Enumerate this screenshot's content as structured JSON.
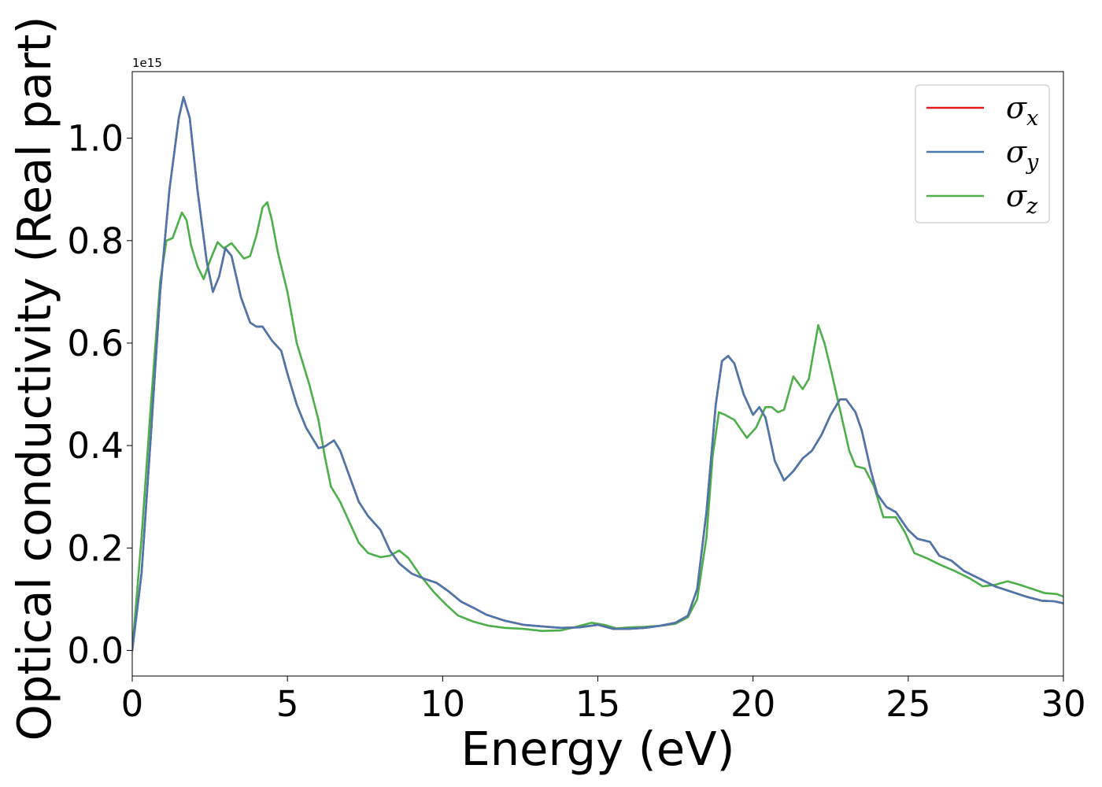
{
  "chart_data": {
    "type": "line",
    "xlabel": "Energy (eV)",
    "ylabel": "Optical conductivity (Real part)",
    "y_offset_text": "1e15",
    "xlim": [
      0,
      30
    ],
    "ylim": [
      -0.05,
      1.13
    ],
    "x_ticks": [
      0,
      5,
      10,
      15,
      20,
      25,
      30
    ],
    "x_tick_labels": [
      "0",
      "5",
      "10",
      "15",
      "20",
      "25",
      "30"
    ],
    "y_ticks": [
      0.0,
      0.2,
      0.4,
      0.6,
      0.8,
      1.0
    ],
    "y_tick_labels": [
      "0.0",
      "0.2",
      "0.4",
      "0.6",
      "0.8",
      "1.0"
    ],
    "grid": false,
    "legend_position": "top-right",
    "colors": {
      "sigma_x": "#e41a1c",
      "sigma_y": "#4a78ad",
      "sigma_z": "#4caf4a"
    },
    "series": [
      {
        "name": "σx",
        "legend_base": "σ",
        "legend_sub": "x",
        "color": "#e41a1c",
        "points": [
          [
            0,
            0
          ],
          [
            0.3,
            0.15
          ],
          [
            0.6,
            0.42
          ],
          [
            0.9,
            0.7
          ],
          [
            1.2,
            0.9
          ],
          [
            1.5,
            1.04
          ],
          [
            1.65,
            1.08
          ],
          [
            1.85,
            1.04
          ],
          [
            2.1,
            0.9
          ],
          [
            2.4,
            0.76
          ],
          [
            2.6,
            0.7
          ],
          [
            2.8,
            0.73
          ],
          [
            3.0,
            0.785
          ],
          [
            3.2,
            0.77
          ],
          [
            3.5,
            0.69
          ],
          [
            3.8,
            0.64
          ],
          [
            4.0,
            0.632
          ],
          [
            4.2,
            0.632
          ],
          [
            4.5,
            0.605
          ],
          [
            4.8,
            0.585
          ],
          [
            5.0,
            0.54
          ],
          [
            5.3,
            0.48
          ],
          [
            5.6,
            0.435
          ],
          [
            6.0,
            0.395
          ],
          [
            6.2,
            0.398
          ],
          [
            6.5,
            0.41
          ],
          [
            6.7,
            0.39
          ],
          [
            7.0,
            0.34
          ],
          [
            7.3,
            0.29
          ],
          [
            7.6,
            0.262
          ],
          [
            8.0,
            0.235
          ],
          [
            8.3,
            0.195
          ],
          [
            8.6,
            0.17
          ],
          [
            9.0,
            0.15
          ],
          [
            9.4,
            0.14
          ],
          [
            9.8,
            0.132
          ],
          [
            10.2,
            0.115
          ],
          [
            10.6,
            0.095
          ],
          [
            11.0,
            0.083
          ],
          [
            11.4,
            0.07
          ],
          [
            12.0,
            0.058
          ],
          [
            12.6,
            0.05
          ],
          [
            13.2,
            0.047
          ],
          [
            13.8,
            0.044
          ],
          [
            14.4,
            0.045
          ],
          [
            15.0,
            0.05
          ],
          [
            15.5,
            0.042
          ],
          [
            16.0,
            0.042
          ],
          [
            16.5,
            0.044
          ],
          [
            17.0,
            0.048
          ],
          [
            17.5,
            0.054
          ],
          [
            17.9,
            0.068
          ],
          [
            18.2,
            0.12
          ],
          [
            18.5,
            0.27
          ],
          [
            18.8,
            0.48
          ],
          [
            19.0,
            0.565
          ],
          [
            19.2,
            0.575
          ],
          [
            19.4,
            0.56
          ],
          [
            19.7,
            0.5
          ],
          [
            20.0,
            0.46
          ],
          [
            20.2,
            0.475
          ],
          [
            20.4,
            0.455
          ],
          [
            20.7,
            0.37
          ],
          [
            21.0,
            0.332
          ],
          [
            21.3,
            0.35
          ],
          [
            21.6,
            0.375
          ],
          [
            21.9,
            0.39
          ],
          [
            22.2,
            0.42
          ],
          [
            22.5,
            0.46
          ],
          [
            22.8,
            0.49
          ],
          [
            23.0,
            0.49
          ],
          [
            23.3,
            0.465
          ],
          [
            23.5,
            0.43
          ],
          [
            23.8,
            0.35
          ],
          [
            24.0,
            0.305
          ],
          [
            24.3,
            0.28
          ],
          [
            24.6,
            0.27
          ],
          [
            25.0,
            0.235
          ],
          [
            25.3,
            0.218
          ],
          [
            25.7,
            0.212
          ],
          [
            26.0,
            0.185
          ],
          [
            26.4,
            0.175
          ],
          [
            26.8,
            0.155
          ],
          [
            27.3,
            0.14
          ],
          [
            27.8,
            0.125
          ],
          [
            28.3,
            0.115
          ],
          [
            28.8,
            0.105
          ],
          [
            29.3,
            0.097
          ],
          [
            29.7,
            0.096
          ],
          [
            30.0,
            0.092
          ]
        ]
      },
      {
        "name": "σy",
        "legend_base": "σ",
        "legend_sub": "y",
        "color": "#4a78ad",
        "points": [
          [
            0,
            0
          ],
          [
            0.3,
            0.15
          ],
          [
            0.6,
            0.42
          ],
          [
            0.9,
            0.7
          ],
          [
            1.2,
            0.9
          ],
          [
            1.5,
            1.04
          ],
          [
            1.65,
            1.08
          ],
          [
            1.85,
            1.04
          ],
          [
            2.1,
            0.9
          ],
          [
            2.4,
            0.76
          ],
          [
            2.6,
            0.7
          ],
          [
            2.8,
            0.73
          ],
          [
            3.0,
            0.785
          ],
          [
            3.2,
            0.77
          ],
          [
            3.5,
            0.69
          ],
          [
            3.8,
            0.64
          ],
          [
            4.0,
            0.632
          ],
          [
            4.2,
            0.632
          ],
          [
            4.5,
            0.605
          ],
          [
            4.8,
            0.585
          ],
          [
            5.0,
            0.54
          ],
          [
            5.3,
            0.48
          ],
          [
            5.6,
            0.435
          ],
          [
            6.0,
            0.395
          ],
          [
            6.2,
            0.398
          ],
          [
            6.5,
            0.41
          ],
          [
            6.7,
            0.39
          ],
          [
            7.0,
            0.34
          ],
          [
            7.3,
            0.29
          ],
          [
            7.6,
            0.262
          ],
          [
            8.0,
            0.235
          ],
          [
            8.3,
            0.195
          ],
          [
            8.6,
            0.17
          ],
          [
            9.0,
            0.15
          ],
          [
            9.4,
            0.14
          ],
          [
            9.8,
            0.132
          ],
          [
            10.2,
            0.115
          ],
          [
            10.6,
            0.095
          ],
          [
            11.0,
            0.083
          ],
          [
            11.4,
            0.07
          ],
          [
            12.0,
            0.058
          ],
          [
            12.6,
            0.05
          ],
          [
            13.2,
            0.047
          ],
          [
            13.8,
            0.044
          ],
          [
            14.4,
            0.045
          ],
          [
            15.0,
            0.05
          ],
          [
            15.5,
            0.042
          ],
          [
            16.0,
            0.042
          ],
          [
            16.5,
            0.044
          ],
          [
            17.0,
            0.048
          ],
          [
            17.5,
            0.054
          ],
          [
            17.9,
            0.068
          ],
          [
            18.2,
            0.12
          ],
          [
            18.5,
            0.27
          ],
          [
            18.8,
            0.48
          ],
          [
            19.0,
            0.565
          ],
          [
            19.2,
            0.575
          ],
          [
            19.4,
            0.56
          ],
          [
            19.7,
            0.5
          ],
          [
            20.0,
            0.46
          ],
          [
            20.2,
            0.475
          ],
          [
            20.4,
            0.455
          ],
          [
            20.7,
            0.37
          ],
          [
            21.0,
            0.332
          ],
          [
            21.3,
            0.35
          ],
          [
            21.6,
            0.375
          ],
          [
            21.9,
            0.39
          ],
          [
            22.2,
            0.42
          ],
          [
            22.5,
            0.46
          ],
          [
            22.8,
            0.49
          ],
          [
            23.0,
            0.49
          ],
          [
            23.3,
            0.465
          ],
          [
            23.5,
            0.43
          ],
          [
            23.8,
            0.35
          ],
          [
            24.0,
            0.305
          ],
          [
            24.3,
            0.28
          ],
          [
            24.6,
            0.27
          ],
          [
            25.0,
            0.235
          ],
          [
            25.3,
            0.218
          ],
          [
            25.7,
            0.212
          ],
          [
            26.0,
            0.185
          ],
          [
            26.4,
            0.175
          ],
          [
            26.8,
            0.155
          ],
          [
            27.3,
            0.14
          ],
          [
            27.8,
            0.125
          ],
          [
            28.3,
            0.115
          ],
          [
            28.8,
            0.105
          ],
          [
            29.3,
            0.097
          ],
          [
            29.7,
            0.096
          ],
          [
            30.0,
            0.092
          ]
        ]
      },
      {
        "name": "σz",
        "legend_base": "σ",
        "legend_sub": "z",
        "color": "#4caf4a",
        "points": [
          [
            0,
            0
          ],
          [
            0.3,
            0.22
          ],
          [
            0.6,
            0.48
          ],
          [
            0.9,
            0.72
          ],
          [
            1.1,
            0.8
          ],
          [
            1.3,
            0.805
          ],
          [
            1.45,
            0.83
          ],
          [
            1.6,
            0.855
          ],
          [
            1.75,
            0.84
          ],
          [
            1.9,
            0.79
          ],
          [
            2.1,
            0.75
          ],
          [
            2.3,
            0.725
          ],
          [
            2.5,
            0.76
          ],
          [
            2.75,
            0.797
          ],
          [
            2.95,
            0.785
          ],
          [
            3.2,
            0.795
          ],
          [
            3.4,
            0.78
          ],
          [
            3.6,
            0.765
          ],
          [
            3.8,
            0.77
          ],
          [
            4.0,
            0.81
          ],
          [
            4.2,
            0.865
          ],
          [
            4.35,
            0.875
          ],
          [
            4.5,
            0.84
          ],
          [
            4.7,
            0.775
          ],
          [
            5.0,
            0.7
          ],
          [
            5.3,
            0.6
          ],
          [
            5.7,
            0.52
          ],
          [
            6.0,
            0.45
          ],
          [
            6.2,
            0.38
          ],
          [
            6.4,
            0.32
          ],
          [
            6.7,
            0.29
          ],
          [
            7.0,
            0.25
          ],
          [
            7.3,
            0.21
          ],
          [
            7.6,
            0.19
          ],
          [
            8.0,
            0.182
          ],
          [
            8.3,
            0.185
          ],
          [
            8.6,
            0.195
          ],
          [
            8.9,
            0.18
          ],
          [
            9.3,
            0.145
          ],
          [
            9.7,
            0.115
          ],
          [
            10.1,
            0.09
          ],
          [
            10.5,
            0.068
          ],
          [
            11.0,
            0.056
          ],
          [
            11.5,
            0.048
          ],
          [
            12.0,
            0.044
          ],
          [
            12.6,
            0.042
          ],
          [
            13.2,
            0.038
          ],
          [
            13.8,
            0.039
          ],
          [
            14.3,
            0.046
          ],
          [
            14.8,
            0.054
          ],
          [
            15.2,
            0.05
          ],
          [
            15.6,
            0.043
          ],
          [
            16.0,
            0.045
          ],
          [
            16.5,
            0.046
          ],
          [
            17.0,
            0.048
          ],
          [
            17.5,
            0.052
          ],
          [
            17.9,
            0.065
          ],
          [
            18.2,
            0.1
          ],
          [
            18.5,
            0.22
          ],
          [
            18.7,
            0.38
          ],
          [
            18.9,
            0.465
          ],
          [
            19.1,
            0.46
          ],
          [
            19.4,
            0.45
          ],
          [
            19.8,
            0.415
          ],
          [
            20.1,
            0.435
          ],
          [
            20.4,
            0.475
          ],
          [
            20.6,
            0.475
          ],
          [
            20.8,
            0.465
          ],
          [
            21.0,
            0.47
          ],
          [
            21.3,
            0.535
          ],
          [
            21.6,
            0.51
          ],
          [
            21.8,
            0.53
          ],
          [
            22.1,
            0.635
          ],
          [
            22.3,
            0.6
          ],
          [
            22.5,
            0.55
          ],
          [
            22.8,
            0.47
          ],
          [
            23.1,
            0.39
          ],
          [
            23.3,
            0.36
          ],
          [
            23.6,
            0.355
          ],
          [
            23.9,
            0.32
          ],
          [
            24.2,
            0.26
          ],
          [
            24.6,
            0.26
          ],
          [
            24.9,
            0.23
          ],
          [
            25.2,
            0.19
          ],
          [
            25.6,
            0.18
          ],
          [
            26.0,
            0.168
          ],
          [
            26.5,
            0.155
          ],
          [
            27.0,
            0.14
          ],
          [
            27.4,
            0.125
          ],
          [
            27.8,
            0.128
          ],
          [
            28.2,
            0.135
          ],
          [
            28.6,
            0.128
          ],
          [
            29.0,
            0.12
          ],
          [
            29.4,
            0.112
          ],
          [
            29.8,
            0.11
          ],
          [
            30.0,
            0.105
          ]
        ]
      }
    ]
  }
}
